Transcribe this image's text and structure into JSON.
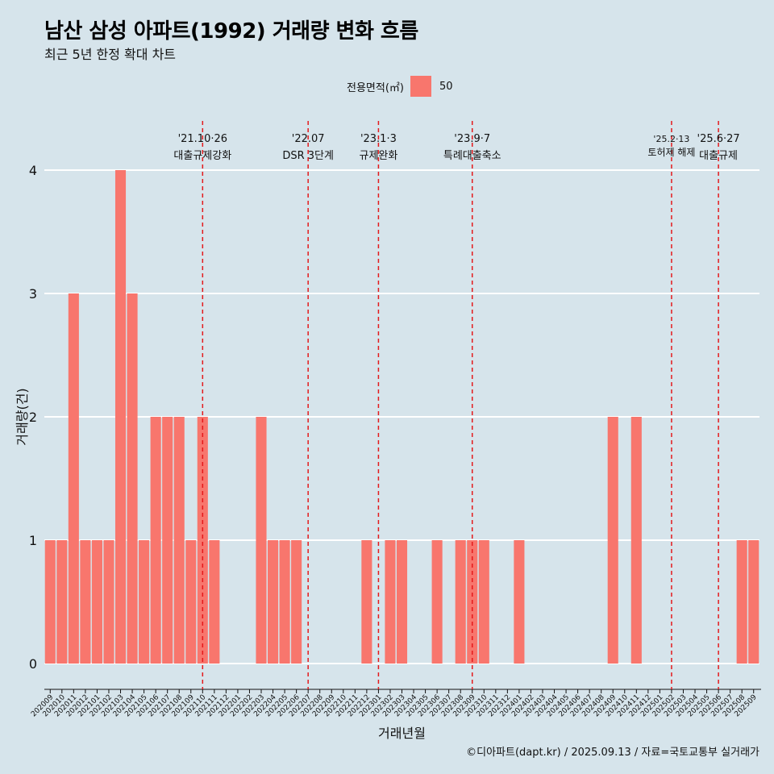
{
  "header": {
    "title": "남산 삼성 아파트(1992) 거래량 변화 흐름",
    "subtitle": "최근 5년 한정 확대 차트"
  },
  "legend": {
    "title": "전용면적(㎡)",
    "entries": [
      {
        "label": "50",
        "color": "#f8766d"
      }
    ]
  },
  "caption": "©디아파트(dapt.kr) / 2025.09.13 / 자료=국토교통부 실거래가",
  "colors": {
    "background": "#d6e4eb",
    "bar": "#f8766d",
    "event_line": "#e41a1c"
  },
  "chart_data": {
    "type": "bar",
    "xlabel": "거래년월",
    "ylabel": "거래량(건)",
    "ylim": [
      0,
      4
    ],
    "yticks": [
      0,
      1,
      2,
      3,
      4
    ],
    "grid": true,
    "legend_position": "top",
    "categories": [
      "202009",
      "202010",
      "202011",
      "202012",
      "202101",
      "202102",
      "202103",
      "202104",
      "202105",
      "202106",
      "202107",
      "202108",
      "202109",
      "202110",
      "202111",
      "202112",
      "202201",
      "202202",
      "202203",
      "202204",
      "202205",
      "202206",
      "202207",
      "202208",
      "202209",
      "202210",
      "202211",
      "202212",
      "202301",
      "202302",
      "202303",
      "202304",
      "202305",
      "202306",
      "202307",
      "202308",
      "202309",
      "202310",
      "202311",
      "202312",
      "202401",
      "202402",
      "202403",
      "202404",
      "202405",
      "202406",
      "202407",
      "202408",
      "202409",
      "202410",
      "202411",
      "202412",
      "202501",
      "202502",
      "202503",
      "202504",
      "202505",
      "202506",
      "202507",
      "202508",
      "202509"
    ],
    "series": [
      {
        "name": "50",
        "values": [
          1,
          1,
          3,
          1,
          1,
          1,
          4,
          3,
          1,
          2,
          2,
          2,
          1,
          2,
          1,
          0,
          0,
          0,
          2,
          1,
          1,
          1,
          0,
          0,
          0,
          0,
          0,
          1,
          0,
          1,
          1,
          0,
          0,
          1,
          0,
          1,
          1,
          1,
          0,
          0,
          1,
          0,
          0,
          0,
          0,
          0,
          0,
          0,
          2,
          0,
          2,
          0,
          0,
          0,
          0,
          0,
          0,
          0,
          0,
          1,
          1
        ]
      }
    ],
    "annotations": [
      {
        "x": "202110",
        "date": "'21.10·26",
        "label": "대출규제강화"
      },
      {
        "x": "202207",
        "date": "'22.07",
        "label": "DSR 3단계"
      },
      {
        "x": "202301",
        "date": "'23.1·3",
        "label": "규제완화"
      },
      {
        "x": "202309",
        "date": "'23.9·7",
        "label": "특례대출축소"
      },
      {
        "x": "202502",
        "date": "'25.2·13",
        "label": "토허제 해제"
      },
      {
        "x": "202506",
        "date": "'25.6·27",
        "label": "대출규제"
      }
    ]
  }
}
